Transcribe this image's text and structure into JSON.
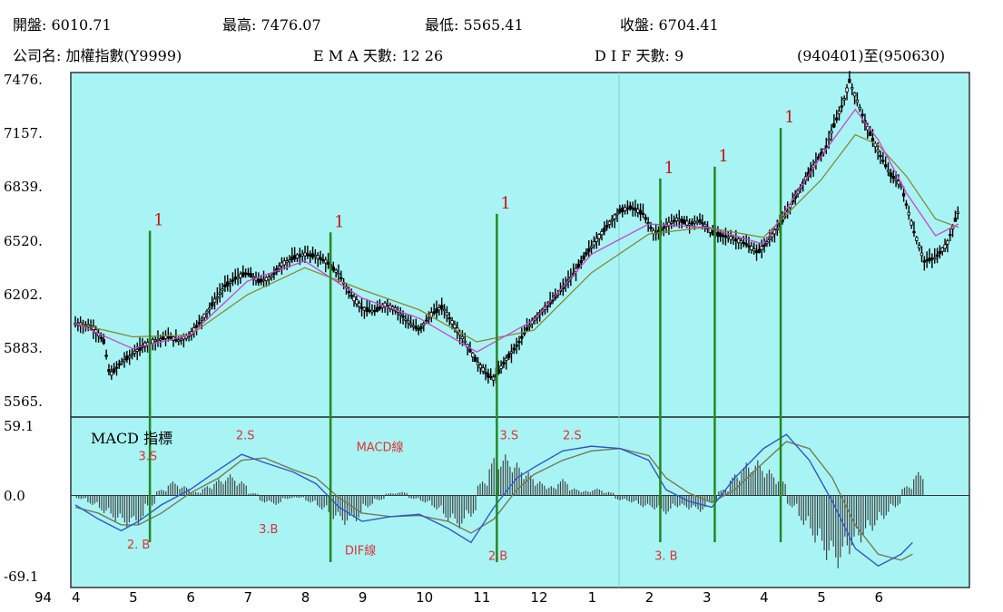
{
  "header": {
    "row1": [
      {
        "label": "開盤:",
        "value": "6010.71"
      },
      {
        "label": "最高:",
        "value": "7476.07"
      },
      {
        "label": "最低:",
        "value": "5565.41"
      },
      {
        "label": "收盤:",
        "value": "6704.41"
      }
    ],
    "company": "公司名: 加權指數(Y9999)",
    "ema": "E M A 天數:  12  26",
    "dif": "D I F 天數:  9",
    "range": "(940401)至(950630)"
  },
  "colors": {
    "background": "#a8f4f4",
    "candle": "#000000",
    "signal_line": "#228822",
    "signal_mark": "#cc1111",
    "ema12": "#cc44cc",
    "ema26": "#888833",
    "dif_line": "#3355cc",
    "macd_line": "#777755",
    "annotation": "#ee1111",
    "annotation_text": "#dd3333"
  },
  "chart_data": [
    {
      "type": "line",
      "name": "price",
      "y_ticks": [
        "7476.",
        "7157.",
        "6839.",
        "6520.",
        "6202.",
        "5883.",
        "5565."
      ],
      "ylim": [
        5565,
        7476
      ],
      "x_ticks": [
        "4",
        "5",
        "6",
        "7",
        "8",
        "9",
        "10",
        "11",
        "12",
        "1",
        "2",
        "3",
        "4",
        "5",
        "6"
      ],
      "x_prefix": "94",
      "x_domain": [
        0,
        15
      ],
      "close_series": [
        [
          0.0,
          6030
        ],
        [
          0.3,
          6010
        ],
        [
          0.5,
          5920
        ],
        [
          0.6,
          5720
        ],
        [
          0.8,
          5800
        ],
        [
          1.0,
          5850
        ],
        [
          1.2,
          5900
        ],
        [
          1.4,
          5930
        ],
        [
          1.6,
          5950
        ],
        [
          1.8,
          5930
        ],
        [
          2.0,
          5960
        ],
        [
          2.2,
          6050
        ],
        [
          2.4,
          6150
        ],
        [
          2.6,
          6250
        ],
        [
          2.8,
          6300
        ],
        [
          3.0,
          6330
        ],
        [
          3.2,
          6280
        ],
        [
          3.4,
          6300
        ],
        [
          3.6,
          6380
        ],
        [
          3.8,
          6420
        ],
        [
          4.0,
          6440
        ],
        [
          4.2,
          6430
        ],
        [
          4.4,
          6390
        ],
        [
          4.6,
          6320
        ],
        [
          4.8,
          6200
        ],
        [
          5.0,
          6120
        ],
        [
          5.2,
          6100
        ],
        [
          5.4,
          6140
        ],
        [
          5.6,
          6110
        ],
        [
          5.8,
          6040
        ],
        [
          6.0,
          5990
        ],
        [
          6.2,
          6080
        ],
        [
          6.4,
          6130
        ],
        [
          6.6,
          6020
        ],
        [
          6.8,
          5920
        ],
        [
          7.0,
          5800
        ],
        [
          7.2,
          5720
        ],
        [
          7.3,
          5700
        ],
        [
          7.5,
          5810
        ],
        [
          7.7,
          5900
        ],
        [
          7.9,
          6010
        ],
        [
          8.1,
          6090
        ],
        [
          8.3,
          6160
        ],
        [
          8.5,
          6240
        ],
        [
          8.7,
          6330
        ],
        [
          8.9,
          6440
        ],
        [
          9.1,
          6530
        ],
        [
          9.3,
          6620
        ],
        [
          9.5,
          6700
        ],
        [
          9.7,
          6720
        ],
        [
          9.9,
          6680
        ],
        [
          10.1,
          6560
        ],
        [
          10.3,
          6610
        ],
        [
          10.5,
          6650
        ],
        [
          10.7,
          6620
        ],
        [
          10.9,
          6640
        ],
        [
          11.1,
          6570
        ],
        [
          11.3,
          6550
        ],
        [
          11.5,
          6530
        ],
        [
          11.7,
          6500
        ],
        [
          11.9,
          6450
        ],
        [
          12.1,
          6530
        ],
        [
          12.3,
          6620
        ],
        [
          12.5,
          6750
        ],
        [
          12.7,
          6870
        ],
        [
          12.9,
          6980
        ],
        [
          13.1,
          7080
        ],
        [
          13.2,
          7180
        ],
        [
          13.4,
          7350
        ],
        [
          13.5,
          7470
        ],
        [
          13.6,
          7380
        ],
        [
          13.8,
          7200
        ],
        [
          14.0,
          7050
        ],
        [
          14.2,
          6920
        ],
        [
          14.4,
          6850
        ],
        [
          14.6,
          6600
        ],
        [
          14.8,
          6400
        ],
        [
          15.0,
          6420
        ],
        [
          15.2,
          6500
        ],
        [
          15.4,
          6700
        ]
      ],
      "ema_short": [
        [
          0.0,
          6030
        ],
        [
          1.0,
          5880
        ],
        [
          2.0,
          5960
        ],
        [
          3.0,
          6280
        ],
        [
          4.0,
          6400
        ],
        [
          5.0,
          6180
        ],
        [
          6.0,
          6060
        ],
        [
          7.0,
          5860
        ],
        [
          8.0,
          6050
        ],
        [
          9.0,
          6440
        ],
        [
          10.0,
          6620
        ],
        [
          11.0,
          6600
        ],
        [
          12.0,
          6500
        ],
        [
          13.0,
          7020
        ],
        [
          13.6,
          7300
        ],
        [
          14.0,
          7120
        ],
        [
          14.5,
          6800
        ],
        [
          15.0,
          6550
        ],
        [
          15.4,
          6620
        ]
      ],
      "ema_long": [
        [
          0.0,
          6030
        ],
        [
          1.0,
          5950
        ],
        [
          2.0,
          5960
        ],
        [
          3.0,
          6200
        ],
        [
          4.0,
          6360
        ],
        [
          5.0,
          6230
        ],
        [
          6.0,
          6110
        ],
        [
          7.0,
          5920
        ],
        [
          8.0,
          5990
        ],
        [
          9.0,
          6330
        ],
        [
          10.0,
          6560
        ],
        [
          11.0,
          6600
        ],
        [
          12.0,
          6540
        ],
        [
          13.0,
          6880
        ],
        [
          13.6,
          7150
        ],
        [
          14.0,
          7090
        ],
        [
          14.5,
          6900
        ],
        [
          15.0,
          6650
        ],
        [
          15.4,
          6600
        ]
      ],
      "signals": [
        {
          "x": 1.3,
          "label": "1",
          "y_top": 6580
        },
        {
          "x": 4.45,
          "label": "1",
          "y_top": 6570
        },
        {
          "x": 7.35,
          "label": "1",
          "y_top": 6680
        },
        {
          "x": 10.2,
          "label": "1",
          "y_top": 6890
        },
        {
          "x": 11.15,
          "label": "1",
          "y_top": 6960
        },
        {
          "x": 12.3,
          "label": "1",
          "y_top": 7190
        }
      ]
    },
    {
      "type": "line",
      "name": "MACD 指標",
      "y_ticks": [
        "59.1",
        "0.0",
        "-69.1"
      ],
      "ylim": [
        -69.1,
        59.1
      ],
      "dif_series": [
        [
          0.0,
          -8
        ],
        [
          0.4,
          -20
        ],
        [
          0.8,
          -30
        ],
        [
          1.1,
          -22
        ],
        [
          1.5,
          -8
        ],
        [
          2.0,
          5
        ],
        [
          2.5,
          22
        ],
        [
          2.9,
          35
        ],
        [
          3.3,
          28
        ],
        [
          3.8,
          20
        ],
        [
          4.2,
          10
        ],
        [
          4.6,
          -10
        ],
        [
          5.0,
          -22
        ],
        [
          5.5,
          -18
        ],
        [
          6.0,
          -16
        ],
        [
          6.5,
          -28
        ],
        [
          6.9,
          -40
        ],
        [
          7.3,
          -10
        ],
        [
          7.7,
          15
        ],
        [
          8.0,
          24
        ],
        [
          8.5,
          38
        ],
        [
          9.0,
          42
        ],
        [
          9.5,
          40
        ],
        [
          10.0,
          30
        ],
        [
          10.3,
          5
        ],
        [
          10.7,
          -5
        ],
        [
          11.1,
          -10
        ],
        [
          11.5,
          15
        ],
        [
          12.0,
          40
        ],
        [
          12.4,
          52
        ],
        [
          12.8,
          30
        ],
        [
          13.2,
          -5
        ],
        [
          13.6,
          -45
        ],
        [
          14.0,
          -60
        ],
        [
          14.4,
          -50
        ],
        [
          14.6,
          -40
        ]
      ],
      "macd_series": [
        [
          0.0,
          -10
        ],
        [
          0.4,
          -15
        ],
        [
          0.8,
          -25
        ],
        [
          1.1,
          -25
        ],
        [
          1.5,
          -15
        ],
        [
          2.0,
          2
        ],
        [
          2.5,
          15
        ],
        [
          2.9,
          30
        ],
        [
          3.3,
          32
        ],
        [
          3.8,
          22
        ],
        [
          4.2,
          15
        ],
        [
          4.6,
          -2
        ],
        [
          5.0,
          -15
        ],
        [
          5.5,
          -18
        ],
        [
          6.0,
          -17
        ],
        [
          6.5,
          -22
        ],
        [
          6.9,
          -32
        ],
        [
          7.3,
          -20
        ],
        [
          7.7,
          5
        ],
        [
          8.0,
          18
        ],
        [
          8.5,
          30
        ],
        [
          9.0,
          38
        ],
        [
          9.5,
          40
        ],
        [
          10.0,
          34
        ],
        [
          10.3,
          15
        ],
        [
          10.7,
          2
        ],
        [
          11.1,
          -6
        ],
        [
          11.5,
          5
        ],
        [
          12.0,
          28
        ],
        [
          12.4,
          46
        ],
        [
          12.8,
          40
        ],
        [
          13.2,
          15
        ],
        [
          13.6,
          -25
        ],
        [
          14.0,
          -50
        ],
        [
          14.4,
          -55
        ],
        [
          14.6,
          -50
        ]
      ],
      "histogram": [
        [
          0.1,
          -3
        ],
        [
          0.3,
          -8
        ],
        [
          0.5,
          -15
        ],
        [
          0.7,
          -22
        ],
        [
          0.9,
          -27
        ],
        [
          1.1,
          -25
        ],
        [
          1.3,
          -10
        ],
        [
          1.5,
          5
        ],
        [
          1.7,
          12
        ],
        [
          1.9,
          8
        ],
        [
          2.1,
          3
        ],
        [
          2.3,
          8
        ],
        [
          2.5,
          14
        ],
        [
          2.7,
          18
        ],
        [
          2.9,
          12
        ],
        [
          3.1,
          2
        ],
        [
          3.3,
          -6
        ],
        [
          3.5,
          -8
        ],
        [
          3.7,
          -3
        ],
        [
          3.9,
          -2
        ],
        [
          4.1,
          -6
        ],
        [
          4.3,
          -12
        ],
        [
          4.5,
          -20
        ],
        [
          4.7,
          -25
        ],
        [
          4.9,
          -22
        ],
        [
          5.1,
          -10
        ],
        [
          5.3,
          -4
        ],
        [
          5.5,
          2
        ],
        [
          5.7,
          3
        ],
        [
          5.9,
          -3
        ],
        [
          6.1,
          -6
        ],
        [
          6.3,
          -12
        ],
        [
          6.5,
          -22
        ],
        [
          6.7,
          -28
        ],
        [
          6.9,
          -18
        ],
        [
          7.1,
          12
        ],
        [
          7.3,
          32
        ],
        [
          7.5,
          35
        ],
        [
          7.7,
          28
        ],
        [
          7.9,
          20
        ],
        [
          8.1,
          12
        ],
        [
          8.3,
          8
        ],
        [
          8.5,
          14
        ],
        [
          8.7,
          6
        ],
        [
          8.9,
          4
        ],
        [
          9.1,
          6
        ],
        [
          9.3,
          3
        ],
        [
          9.5,
          -4
        ],
        [
          9.7,
          -6
        ],
        [
          9.9,
          -10
        ],
        [
          10.1,
          -12
        ],
        [
          10.3,
          -16
        ],
        [
          10.5,
          -10
        ],
        [
          10.7,
          -12
        ],
        [
          10.9,
          -14
        ],
        [
          11.1,
          -6
        ],
        [
          11.3,
          5
        ],
        [
          11.5,
          18
        ],
        [
          11.7,
          28
        ],
        [
          11.9,
          30
        ],
        [
          12.1,
          22
        ],
        [
          12.3,
          14
        ],
        [
          12.5,
          -10
        ],
        [
          12.7,
          -25
        ],
        [
          12.9,
          -40
        ],
        [
          13.1,
          -55
        ],
        [
          13.3,
          -62
        ],
        [
          13.5,
          -50
        ],
        [
          13.7,
          -40
        ],
        [
          13.9,
          -30
        ],
        [
          14.1,
          -20
        ],
        [
          14.3,
          -10
        ],
        [
          14.5,
          8
        ],
        [
          14.7,
          20
        ]
      ],
      "annotations": [
        {
          "text": "3.S",
          "x": 1.1,
          "y": 30
        },
        {
          "text": "2.S",
          "x": 2.8,
          "y": 48
        },
        {
          "text": "2. B",
          "x": 0.9,
          "y": -45
        },
        {
          "text": "3.B",
          "x": 3.2,
          "y": -32
        },
        {
          "text": "MACD線",
          "x": 4.9,
          "y": 38
        },
        {
          "text": "DIF線",
          "x": 4.7,
          "y": -50
        },
        {
          "text": "3.S",
          "x": 7.4,
          "y": 48
        },
        {
          "text": "2.S",
          "x": 8.5,
          "y": 48
        },
        {
          "text": "2.B",
          "x": 7.2,
          "y": -55
        },
        {
          "text": "3. B",
          "x": 10.1,
          "y": -55
        }
      ]
    }
  ]
}
